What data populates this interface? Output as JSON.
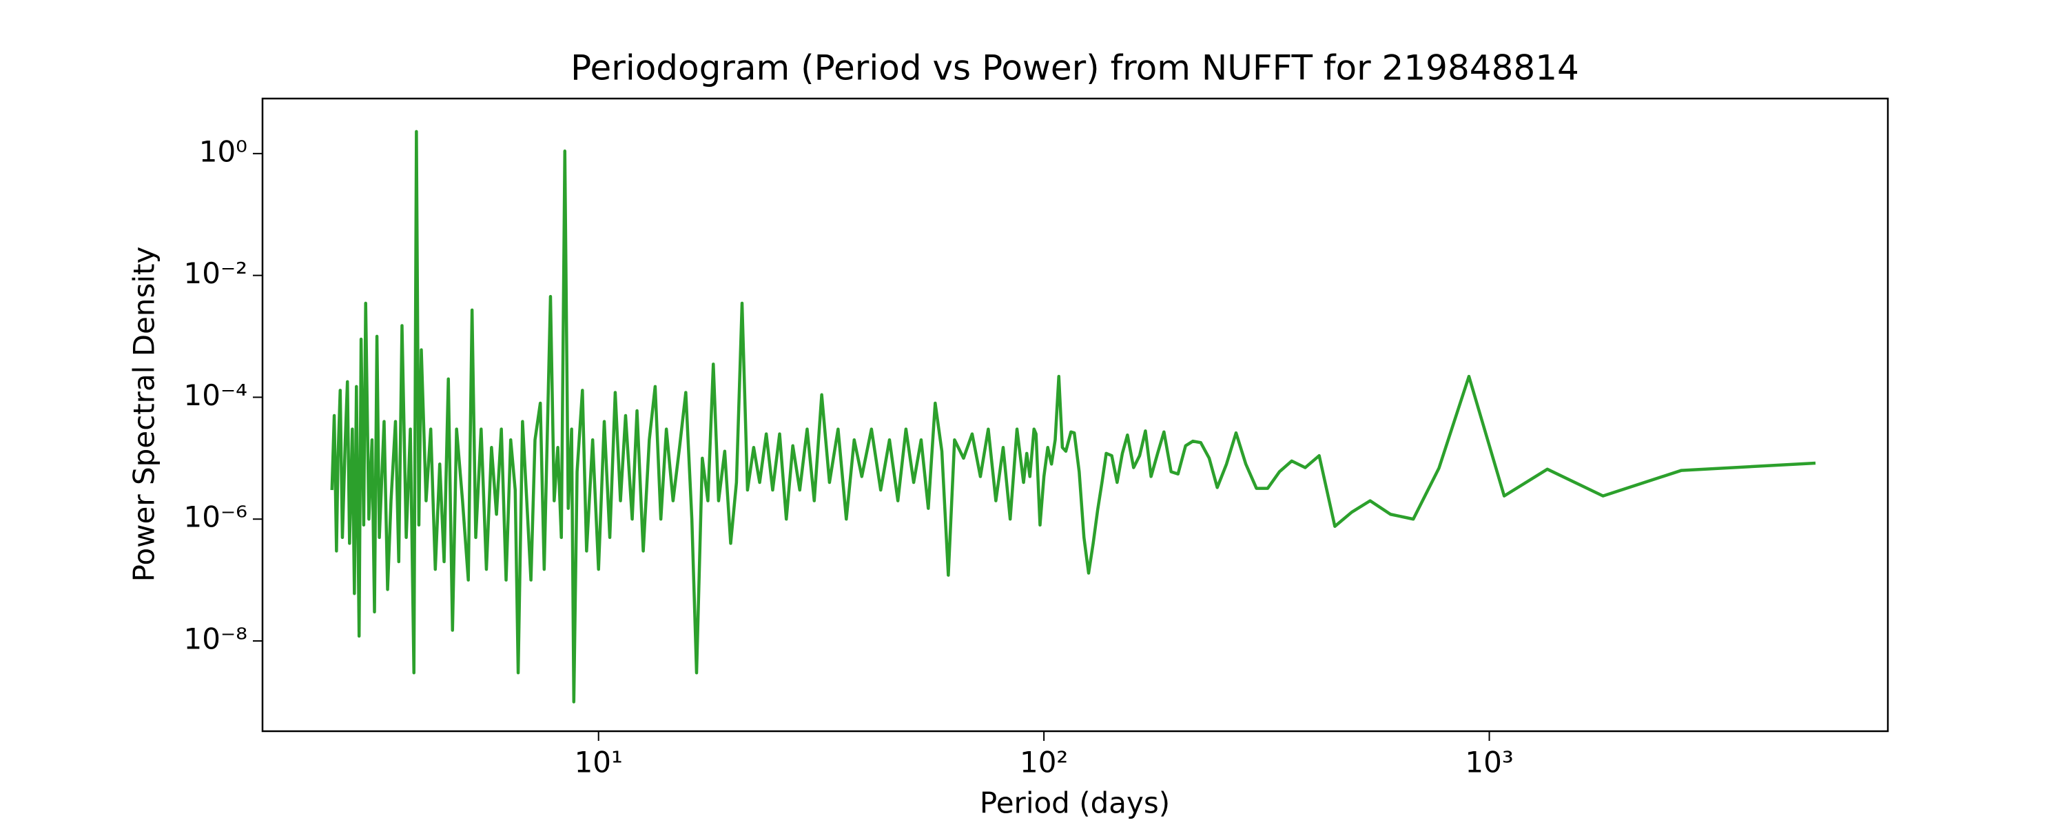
{
  "chart_data": {
    "type": "line",
    "title": "Periodogram (Period vs Power) from NUFFT for 219848814",
    "x_label": "Period (days)",
    "y_label": "Power Spectral Density",
    "xscale": "log",
    "yscale": "log",
    "grid": false,
    "xlim": [
      1.76,
      7850
    ],
    "ylim": [
      3.3e-10,
      8
    ],
    "xticks": [
      {
        "value": 10,
        "label": "10¹"
      },
      {
        "value": 100,
        "label": "10²"
      },
      {
        "value": 1000,
        "label": "10³"
      }
    ],
    "yticks": [
      {
        "value": 1e-08,
        "label": "10⁻⁸"
      },
      {
        "value": 1e-06,
        "label": "10⁻⁶"
      },
      {
        "value": 0.0001,
        "label": "10⁻⁴"
      },
      {
        "value": 0.01,
        "label": "10⁻²"
      },
      {
        "value": 1,
        "label": "10⁰"
      }
    ],
    "x": [
      2.52,
      2.55,
      2.58,
      2.6,
      2.63,
      2.66,
      2.7,
      2.73,
      2.76,
      2.8,
      2.83,
      2.86,
      2.9,
      2.93,
      2.97,
      3.0,
      3.05,
      3.1,
      3.14,
      3.18,
      3.22,
      3.3,
      3.36,
      3.42,
      3.5,
      3.56,
      3.62,
      3.7,
      3.78,
      3.85,
      3.9,
      3.95,
      4.0,
      4.1,
      4.2,
      4.3,
      4.4,
      4.5,
      4.6,
      4.7,
      4.8,
      4.95,
      5.1,
      5.2,
      5.3,
      5.45,
      5.6,
      5.75,
      5.9,
      6.05,
      6.2,
      6.35,
      6.5,
      6.6,
      6.75,
      6.9,
      7.05,
      7.2,
      7.4,
      7.55,
      7.8,
      7.95,
      8.1,
      8.25,
      8.4,
      8.55,
      8.7,
      8.8,
      8.95,
      9.2,
      9.4,
      9.7,
      10.0,
      10.3,
      10.6,
      10.9,
      11.2,
      11.5,
      11.9,
      12.2,
      12.6,
      13.0,
      13.4,
      13.8,
      14.2,
      14.7,
      15.2,
      15.7,
      16.2,
      16.6,
      17.1,
      17.6,
      18.1,
      18.6,
      19.2,
      19.8,
      20.4,
      21.0,
      21.6,
      22.3,
      23.0,
      23.8,
      24.6,
      25.5,
      26.4,
      27.3,
      28.3,
      29.4,
      30.5,
      31.7,
      33,
      34.5,
      36,
      37.5,
      39,
      41,
      43,
      45,
      47,
      49,
      51,
      53,
      55,
      57,
      59,
      61,
      63,
      66,
      69,
      72,
      75,
      78,
      81,
      84,
      87,
      90,
      91.5,
      93,
      95,
      96,
      98,
      100,
      102,
      104,
      106,
      108,
      110,
      112,
      115,
      117,
      120,
      123,
      126,
      129,
      132,
      135,
      138,
      142,
      146,
      150,
      154,
      159,
      164,
      169,
      174,
      180,
      186,
      193,
      200,
      208,
      216,
      225,
      235,
      245,
      257,
      270,
      284,
      300,
      318,
      338,
      360,
      386,
      415,
      450,
      491,
      540,
      600,
      675,
      771,
      900,
      1080,
      1350,
      1800,
      2700,
      5400
    ],
    "series": [
      {
        "name": "Power",
        "color": "#2ca02c",
        "values": [
          3e-06,
          5e-05,
          3e-07,
          1e-05,
          0.00013,
          5e-07,
          2e-05,
          0.00018,
          4e-07,
          3e-05,
          6e-08,
          0.00015,
          1.2e-08,
          0.0009,
          8e-07,
          0.0035,
          1e-06,
          2e-05,
          3e-08,
          0.001,
          5e-07,
          4e-05,
          7e-08,
          2e-06,
          4e-05,
          2e-07,
          0.0015,
          5e-07,
          3e-05,
          3e-09,
          2.3,
          8e-07,
          0.0006,
          2e-06,
          3e-05,
          1.5e-07,
          8e-06,
          2e-07,
          0.0002,
          1.5e-08,
          3e-05,
          2e-06,
          1e-07,
          0.0027,
          5e-07,
          3e-05,
          1.5e-07,
          1.5e-05,
          1.2e-06,
          3e-05,
          1e-07,
          2e-05,
          3e-06,
          3e-09,
          4e-05,
          2e-06,
          1e-07,
          2e-05,
          8e-05,
          1.5e-07,
          0.0045,
          2e-06,
          1.5e-05,
          5e-07,
          1.1,
          1.5e-06,
          3e-05,
          1e-09,
          6e-06,
          0.00013,
          3e-07,
          2e-05,
          1.5e-07,
          4e-05,
          5e-07,
          0.00012,
          2e-06,
          5e-05,
          1e-06,
          6e-05,
          3e-07,
          2e-05,
          0.00015,
          1e-06,
          3e-05,
          2e-06,
          1.5e-05,
          0.00012,
          1e-06,
          3e-09,
          1e-05,
          2e-06,
          0.00035,
          2e-06,
          1.3e-05,
          4e-07,
          4e-06,
          0.0035,
          3e-06,
          1.5e-05,
          4e-06,
          2.5e-05,
          3e-06,
          2.5e-05,
          1e-06,
          1.6e-05,
          3e-06,
          3e-05,
          2e-06,
          0.00011,
          4e-06,
          3e-05,
          1e-06,
          2e-05,
          5e-06,
          3e-05,
          3e-06,
          2e-05,
          2e-06,
          3e-05,
          4e-06,
          2e-05,
          1.5e-06,
          8e-05,
          1.3e-05,
          1.2e-07,
          2e-05,
          1e-05,
          2.5e-05,
          5e-06,
          3e-05,
          2e-06,
          1.5e-05,
          1e-06,
          3e-05,
          4e-06,
          1.2e-05,
          5e-06,
          3e-05,
          2.5e-05,
          8e-07,
          5e-06,
          1.5e-05,
          8e-06,
          2e-05,
          0.00022,
          1.5e-05,
          1.3e-05,
          2.7e-05,
          2.6e-05,
          6e-06,
          5e-07,
          1.3e-07,
          4e-07,
          1.4e-06,
          4e-06,
          1.2e-05,
          1.1e-05,
          4e-06,
          1.2e-05,
          2.4e-05,
          7e-06,
          1.1e-05,
          2.8e-05,
          5e-06,
          1.2e-05,
          2.7e-05,
          6e-06,
          5.5e-06,
          1.6e-05,
          1.9e-05,
          1.8e-05,
          1e-05,
          3.3e-06,
          8e-06,
          2.6e-05,
          8e-06,
          3.2e-06,
          3.2e-06,
          6e-06,
          9e-06,
          7e-06,
          1.1e-05,
          7.6e-07,
          1.3e-06,
          2e-06,
          1.2e-06,
          1e-06,
          6.9e-06,
          0.00022,
          2.4e-06,
          6.6e-06,
          2.4e-06,
          6.3e-06,
          8.3e-06
        ]
      }
    ]
  }
}
